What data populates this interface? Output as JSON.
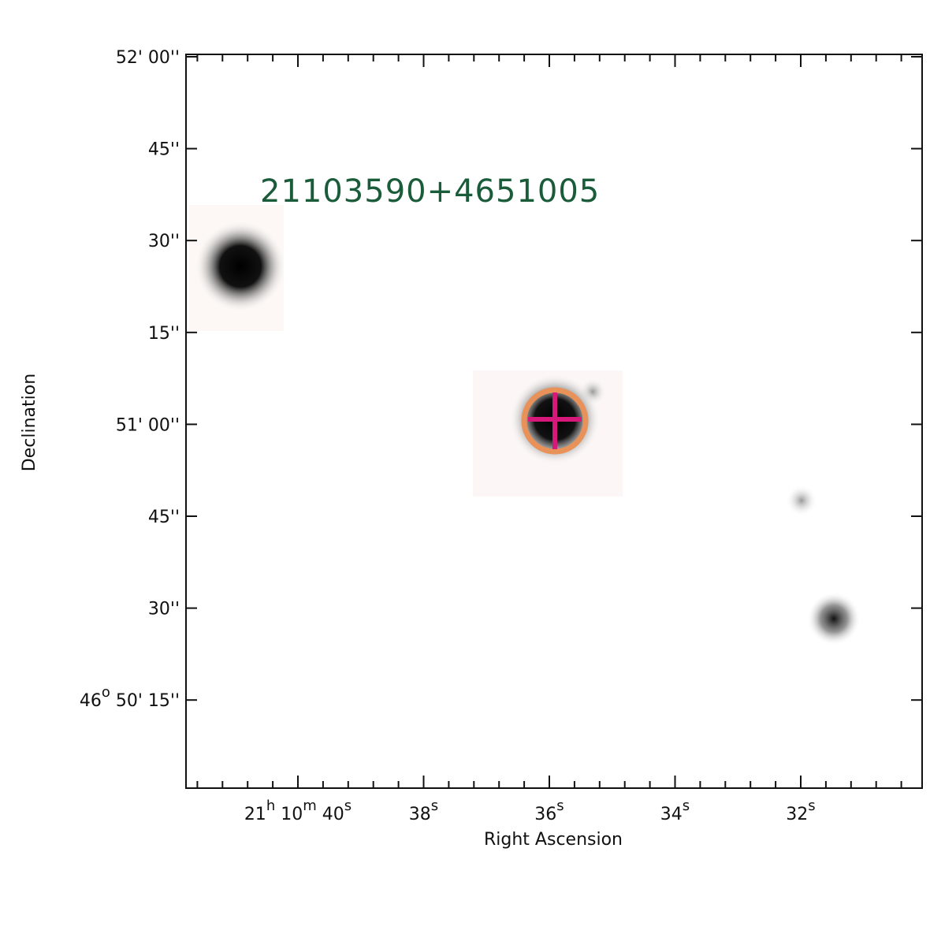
{
  "title": "21103590+4651005",
  "x_axis": {
    "label": "Right Ascension",
    "ticks": [
      [
        {
          "text": "21",
          "sup": "h"
        },
        {
          "text": " 10",
          "sup": "m"
        },
        {
          "text": " 40",
          "sup": "s"
        }
      ],
      [
        {
          "text": "38",
          "sup": "s"
        }
      ],
      [
        {
          "text": "36",
          "sup": "s"
        }
      ],
      [
        {
          "text": "34",
          "sup": "s"
        }
      ],
      [
        {
          "text": "32",
          "sup": "s"
        }
      ]
    ]
  },
  "y_axis": {
    "label": "Declination",
    "ticks": [
      [
        {
          "text": "52' 00''"
        }
      ],
      [
        {
          "text": "45''"
        }
      ],
      [
        {
          "text": "30''"
        }
      ],
      [
        {
          "text": "15''"
        }
      ],
      [
        {
          "text": "51' 00''"
        }
      ],
      [
        {
          "text": "45''"
        }
      ],
      [
        {
          "text": "30''"
        }
      ],
      [
        {
          "text": "46",
          "sup": "o"
        },
        {
          "text": " 50' 15''"
        }
      ]
    ]
  }
}
